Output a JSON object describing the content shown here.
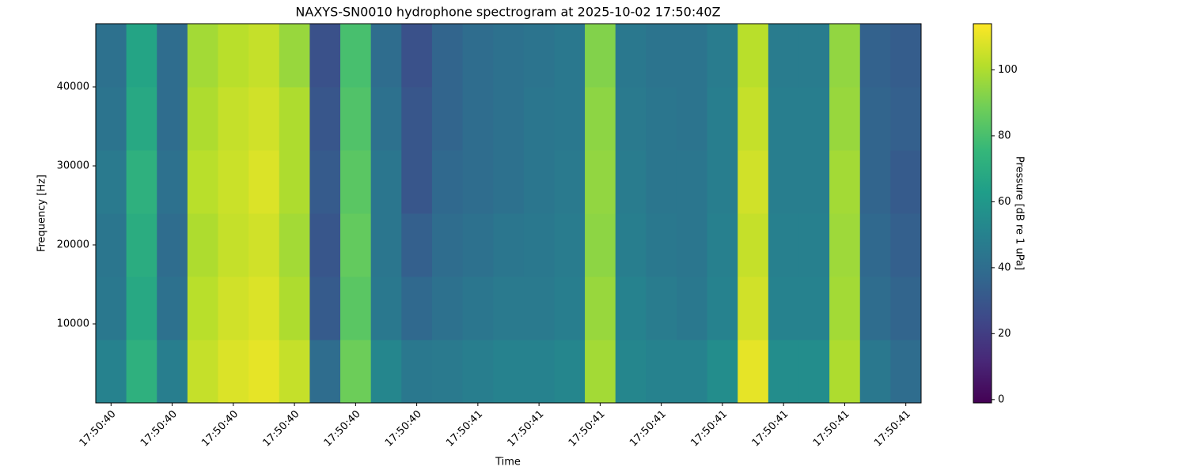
{
  "chart_data": {
    "type": "heatmap",
    "title": "NAXYS-SN0010 hydrophone spectrogram at 2025-10-02 17:50:40Z",
    "x_label": "Time",
    "y_label": "Frequency [Hz]",
    "colorbar_label": "Pressure [dB re 1 uPa]",
    "colormap": "viridis",
    "x": [
      40.4,
      40.45,
      40.5,
      40.55,
      40.6,
      40.65,
      40.7,
      40.75,
      40.8,
      40.85,
      40.9,
      40.95,
      41.0,
      41.05,
      41.1,
      41.15,
      41.2,
      41.25,
      41.3,
      41.35,
      41.4,
      41.45,
      41.5,
      41.55,
      41.6,
      41.65,
      41.7
    ],
    "y": [
      4000,
      12000,
      20000,
      28000,
      36000,
      44000
    ],
    "z": [
      [
        50,
        72,
        48,
        104,
        108,
        110,
        104,
        40,
        88,
        52,
        45,
        46,
        48,
        50,
        50,
        52,
        98,
        52,
        50,
        50,
        55,
        110,
        55,
        55,
        100,
        45,
        40
      ],
      [
        45,
        68,
        42,
        102,
        106,
        108,
        100,
        32,
        84,
        45,
        38,
        42,
        44,
        46,
        46,
        48,
        96,
        50,
        47,
        45,
        50,
        106,
        50,
        50,
        98,
        40,
        36
      ],
      [
        44,
        70,
        40,
        100,
        104,
        106,
        98,
        30,
        86,
        44,
        34,
        40,
        42,
        44,
        45,
        47,
        94,
        48,
        45,
        44,
        49,
        104,
        49,
        49,
        97,
        38,
        34
      ],
      [
        46,
        72,
        42,
        102,
        105,
        108,
        100,
        32,
        84,
        44,
        30,
        38,
        40,
        42,
        44,
        46,
        95,
        47,
        44,
        44,
        48,
        106,
        48,
        48,
        98,
        36,
        32
      ],
      [
        43,
        68,
        40,
        100,
        104,
        106,
        100,
        30,
        82,
        42,
        30,
        36,
        40,
        42,
        44,
        45,
        94,
        46,
        44,
        43,
        48,
        104,
        48,
        48,
        96,
        36,
        34
      ],
      [
        42,
        66,
        40,
        98,
        102,
        104,
        96,
        28,
        80,
        40,
        28,
        36,
        40,
        42,
        43,
        45,
        92,
        45,
        43,
        43,
        47,
        102,
        47,
        47,
        95,
        35,
        33
      ]
    ],
    "xlim": [
      40.375,
      41.725
    ],
    "ylim": [
      0,
      48000
    ],
    "clim": [
      -1,
      114
    ],
    "xticks": [
      {
        "value": 40.4,
        "label": "17:50:40"
      },
      {
        "value": 40.5,
        "label": "17:50:40"
      },
      {
        "value": 40.6,
        "label": "17:50:40"
      },
      {
        "value": 40.7,
        "label": "17:50:40"
      },
      {
        "value": 40.8,
        "label": "17:50:40"
      },
      {
        "value": 40.9,
        "label": "17:50:40"
      },
      {
        "value": 41.0,
        "label": "17:50:41"
      },
      {
        "value": 41.1,
        "label": "17:50:41"
      },
      {
        "value": 41.2,
        "label": "17:50:41"
      },
      {
        "value": 41.3,
        "label": "17:50:41"
      },
      {
        "value": 41.4,
        "label": "17:50:41"
      },
      {
        "value": 41.5,
        "label": "17:50:41"
      },
      {
        "value": 41.6,
        "label": "17:50:41"
      },
      {
        "value": 41.7,
        "label": "17:50:41"
      }
    ],
    "yticks": [
      10000,
      20000,
      30000,
      40000
    ],
    "cticks": [
      0,
      20,
      40,
      60,
      80,
      100
    ]
  }
}
